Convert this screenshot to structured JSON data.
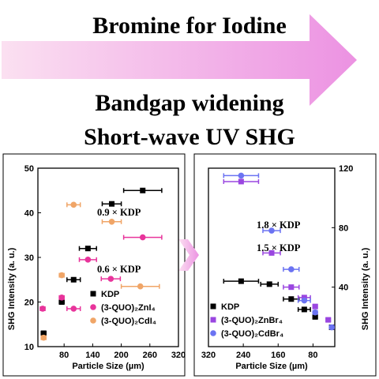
{
  "headline": {
    "title": "Bromine for Iodine",
    "line1": "Bandgap widening",
    "line2": "Short-wave UV SHG"
  },
  "colors": {
    "kdp": "#000000",
    "zni4": "#e8349b",
    "cdi4": "#f0a567",
    "znbr4": "#9a46e0",
    "cdbr4": "#6b73f2",
    "arrow_start": "#fbe0f1",
    "arrow_end": "#ec92e2"
  },
  "chart_data": [
    {
      "type": "scatter",
      "title": "",
      "xlabel": "Particle Size (µm)",
      "ylabel": "SHG Intensity (a. u.)",
      "xlim": [
        25,
        320
      ],
      "ylim": [
        10,
        50
      ],
      "xticks": [
        80,
        140,
        200,
        260,
        320
      ],
      "yticks": [
        10,
        20,
        30,
        40,
        50
      ],
      "y_axis_side": "left",
      "x_reversed": false,
      "legend_position": "bottom-right",
      "annotations": [
        "0.9 × KDP",
        "0.6 × KDP"
      ],
      "series": [
        {
          "name": "KDP",
          "marker": "square",
          "color_key": "kdp",
          "points": [
            {
              "x": 37,
              "y": 13,
              "xerr": 5
            },
            {
              "x": 75,
              "y": 20,
              "xerr": 5
            },
            {
              "x": 100,
              "y": 25,
              "xerr": 14
            },
            {
              "x": 130,
              "y": 32,
              "xerr": 18
            },
            {
              "x": 180,
              "y": 42,
              "xerr": 20
            },
            {
              "x": 245,
              "y": 45,
              "xerr": 40
            }
          ]
        },
        {
          "name": "(3-QUO)₂ZnI₄",
          "marker": "circle",
          "color_key": "zni4",
          "points": [
            {
              "x": 35,
              "y": 18.5,
              "xerr": 5
            },
            {
              "x": 75,
              "y": 21,
              "xerr": 5
            },
            {
              "x": 100,
              "y": 18.5,
              "xerr": 14
            },
            {
              "x": 130,
              "y": 29.5,
              "xerr": 18
            },
            {
              "x": 178,
              "y": 25.2,
              "xerr": 20
            },
            {
              "x": 245,
              "y": 34.5,
              "xerr": 40
            }
          ]
        },
        {
          "name": "(3-QUO)₂CdI₄",
          "marker": "circle",
          "color_key": "cdi4",
          "points": [
            {
              "x": 37,
              "y": 12,
              "xerr": 5
            },
            {
              "x": 75,
              "y": 26,
              "xerr": 5
            },
            {
              "x": 100,
              "y": 41.8,
              "xerr": 14
            },
            {
              "x": 180,
              "y": 38,
              "xerr": 20
            },
            {
              "x": 240,
              "y": 23.5,
              "xerr": 40
            }
          ]
        }
      ]
    },
    {
      "type": "scatter",
      "title": "",
      "xlabel": "Particle Size (µm)",
      "ylabel": "SHG Intensity (a. u.)",
      "xlim": [
        320,
        30
      ],
      "ylim": [
        0,
        120
      ],
      "xticks": [
        320,
        240,
        160,
        80
      ],
      "yticks": [
        40,
        80,
        120
      ],
      "y_axis_side": "right",
      "x_reversed": true,
      "legend_position": "bottom-left",
      "annotations": [
        "1.8 × KDP",
        "1.5 × KDP"
      ],
      "series": [
        {
          "name": "KDP",
          "marker": "square",
          "color_key": "kdp",
          "points": [
            {
              "x": 37,
              "y": 13,
              "xerr": 5
            },
            {
              "x": 75,
              "y": 20,
              "xerr": 5
            },
            {
              "x": 100,
              "y": 25,
              "xerr": 14
            },
            {
              "x": 130,
              "y": 32,
              "xerr": 18
            },
            {
              "x": 180,
              "y": 42,
              "xerr": 20
            },
            {
              "x": 245,
              "y": 44,
              "xerr": 40
            }
          ]
        },
        {
          "name": "(3-QUO)₂ZnBr₄",
          "marker": "square",
          "color_key": "znbr4",
          "points": [
            {
              "x": 45,
              "y": 18,
              "xerr": 5
            },
            {
              "x": 75,
              "y": 27,
              "xerr": 5
            },
            {
              "x": 100,
              "y": 33,
              "xerr": 14
            },
            {
              "x": 130,
              "y": 40,
              "xerr": 18
            },
            {
              "x": 175,
              "y": 63,
              "xerr": 20
            },
            {
              "x": 245,
              "y": 111,
              "xerr": 40
            }
          ]
        },
        {
          "name": "(3-QUO)₂CdBr₄",
          "marker": "circle",
          "color_key": "cdbr4",
          "points": [
            {
              "x": 37,
              "y": 13,
              "xerr": 5
            },
            {
              "x": 75,
              "y": 23,
              "xerr": 5
            },
            {
              "x": 100,
              "y": 31,
              "xerr": 14
            },
            {
              "x": 130,
              "y": 52,
              "xerr": 18
            },
            {
              "x": 175,
              "y": 78,
              "xerr": 20
            },
            {
              "x": 245,
              "y": 115,
              "xerr": 40
            }
          ]
        }
      ]
    }
  ]
}
